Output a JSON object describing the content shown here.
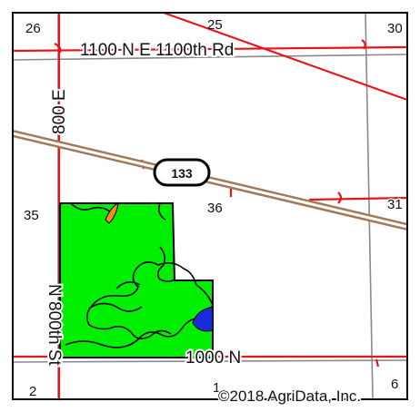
{
  "map": {
    "colors": {
      "background": "#ffffff",
      "frame": "#000000",
      "section_lines": "#8a8a8a",
      "roads": "#e8141c",
      "highway": "#a0785a",
      "field_fill": "#00ee00",
      "field_outline": "#000000",
      "soil_orange": "#ff8c1a",
      "soil_blue": "#1a2bdd"
    },
    "roads": {
      "north_road": "1100 N E 1100th Rd",
      "west_road_north": "800 E",
      "west_road_south": "N 800th St",
      "south_road": "1000 N"
    },
    "highway_shield": "133",
    "sections": {
      "s26": "26",
      "s25": "25",
      "s30": "30",
      "s35": "35",
      "s36": "36",
      "s31": "31",
      "s2": "2",
      "s1": "1",
      "s6": "6"
    },
    "credit": "©2018 AgriData, Inc."
  }
}
